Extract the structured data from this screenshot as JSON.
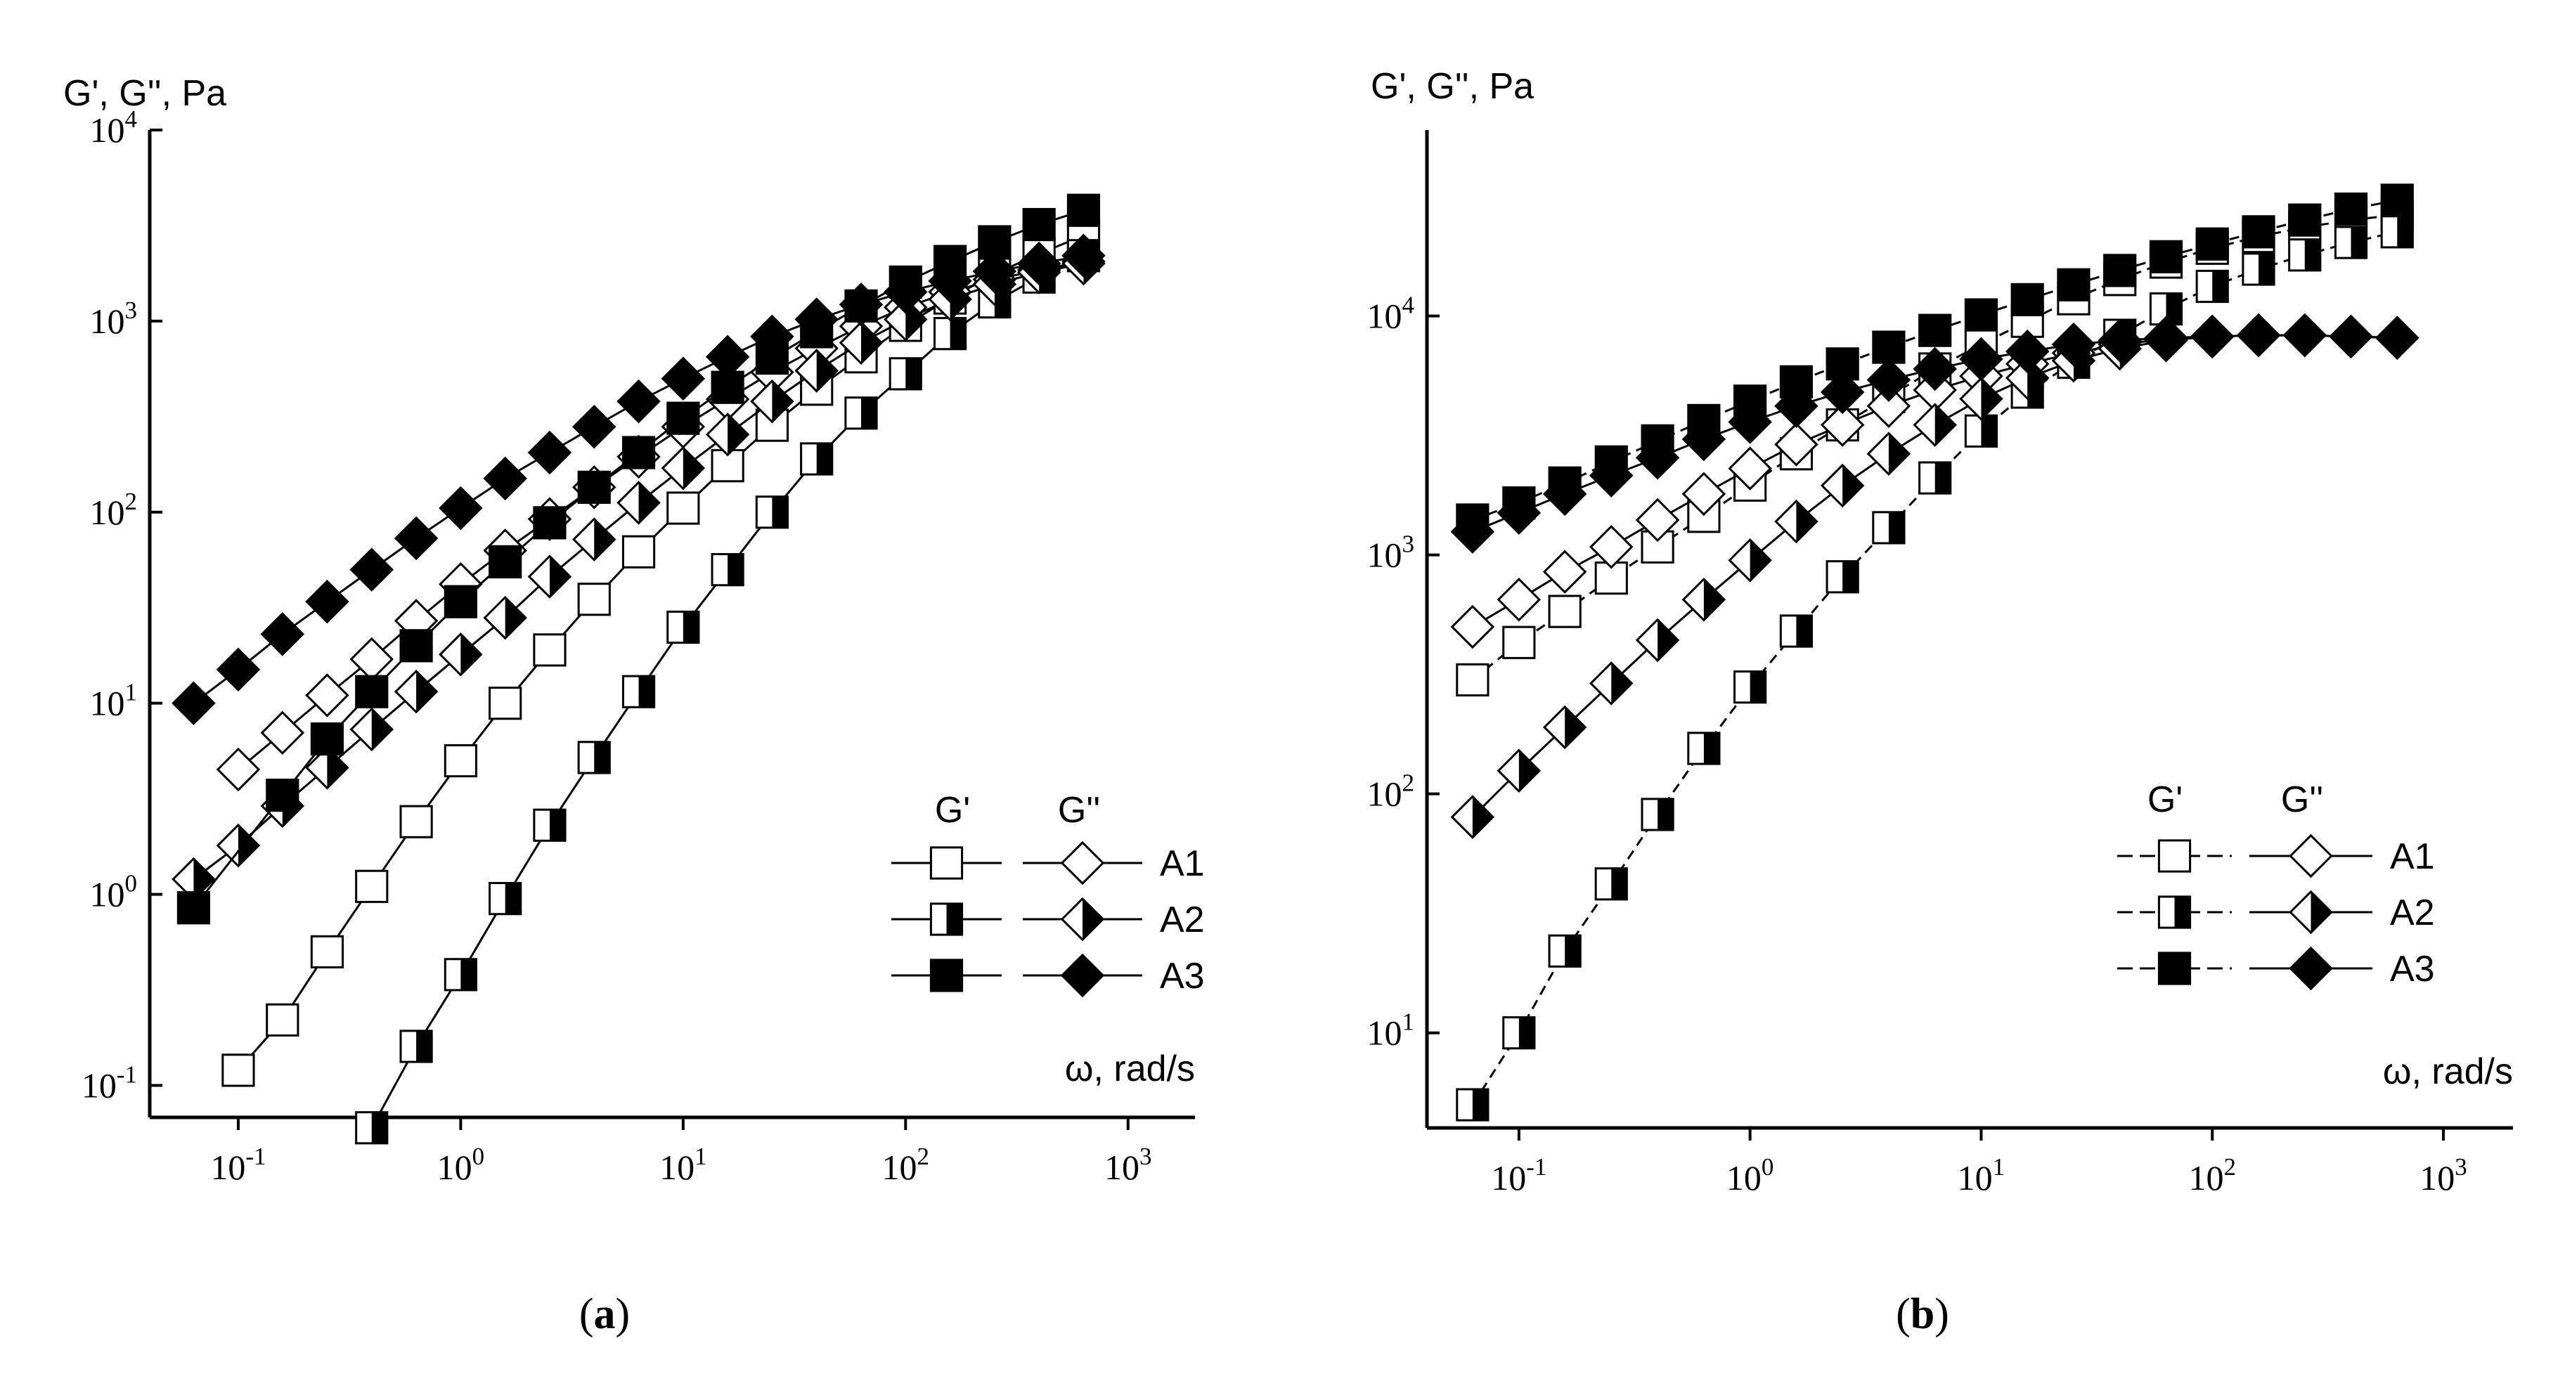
{
  "colors": {
    "ink": "#000000",
    "paper": "#ffffff"
  },
  "chart_data": [
    {
      "type": "scatter",
      "panel": "a",
      "caption_letter": "a",
      "xscale": "log",
      "yscale": "log",
      "xlim": [
        0.04,
        2000
      ],
      "ylim": [
        0.068,
        10000
      ],
      "ylabel": "G', G'', Pa",
      "xlabel": "ω, rad/s",
      "x_ticks": [
        {
          "base": "10",
          "exp": "-1",
          "value": 0.1
        },
        {
          "base": "10",
          "exp": "0",
          "value": 1
        },
        {
          "base": "10",
          "exp": "1",
          "value": 10
        },
        {
          "base": "10",
          "exp": "2",
          "value": 100
        },
        {
          "base": "10",
          "exp": "3",
          "value": 1000
        }
      ],
      "y_ticks": [
        {
          "base": "10",
          "exp": "-1",
          "value": 0.1
        },
        {
          "base": "10",
          "exp": "0",
          "value": 1
        },
        {
          "base": "10",
          "exp": "1",
          "value": 10
        },
        {
          "base": "10",
          "exp": "2",
          "value": 100
        },
        {
          "base": "10",
          "exp": "3",
          "value": 1000
        },
        {
          "base": "10",
          "exp": "4",
          "value": 10000
        }
      ],
      "legend": {
        "g1_header": "G'",
        "g2_header": "G''",
        "entries": [
          "A1",
          "A2",
          "A3"
        ],
        "placement": "bottom-right"
      },
      "series": [
        {
          "name": "A1 G'",
          "sample": "A1",
          "modulus": "G'",
          "marker": "square",
          "fill": "open",
          "x": [
            0.1,
            0.158,
            0.251,
            0.398,
            0.631,
            1,
            1.585,
            2.512,
            3.981,
            6.31,
            10,
            15.85,
            25.12,
            39.81,
            63.1,
            100,
            158.5,
            251.2,
            398.1,
            631
          ],
          "y": [
            0.12,
            0.22,
            0.5,
            1.1,
            2.4,
            5,
            10,
            19,
            35,
            62,
            105,
            175,
            285,
            440,
            650,
            950,
            1320,
            1760,
            2250,
            2800
          ]
        },
        {
          "name": "A1 G''",
          "sample": "A1",
          "modulus": "G''",
          "marker": "diamond",
          "fill": "open",
          "x": [
            0.1,
            0.158,
            0.251,
            0.398,
            0.631,
            1,
            1.585,
            2.512,
            3.981,
            6.31,
            10,
            15.85,
            25.12,
            39.81,
            63.1,
            100,
            158.5,
            251.2,
            398.1,
            631
          ],
          "y": [
            4.5,
            7,
            11,
            17,
            27,
            42,
            63,
            92,
            135,
            195,
            280,
            390,
            540,
            720,
            940,
            1180,
            1420,
            1650,
            1850,
            2050
          ]
        },
        {
          "name": "A2 G'",
          "sample": "A2",
          "modulus": "G'",
          "marker": "square",
          "fill": "half",
          "x": [
            0.398,
            0.631,
            1,
            1.585,
            2.512,
            3.981,
            6.31,
            10,
            15.85,
            25.12,
            39.81,
            63.1,
            100,
            158.5,
            251.2,
            398.1,
            631
          ],
          "y": [
            0.06,
            0.16,
            0.38,
            0.95,
            2.3,
            5.2,
            11.5,
            25,
            50,
            100,
            190,
            330,
            530,
            860,
            1260,
            1700,
            2200
          ]
        },
        {
          "name": "A2 G''",
          "sample": "A2",
          "modulus": "G''",
          "marker": "diamond",
          "fill": "half",
          "x": [
            0.063,
            0.1,
            0.158,
            0.251,
            0.398,
            0.631,
            1,
            1.585,
            2.512,
            3.981,
            6.31,
            10,
            15.85,
            25.12,
            39.81,
            63.1,
            100,
            158.5,
            251.2,
            398.1,
            631
          ],
          "y": [
            1.2,
            1.8,
            2.9,
            4.6,
            7.3,
            11.5,
            18,
            28,
            46,
            72,
            112,
            170,
            255,
            380,
            550,
            770,
            1020,
            1300,
            1560,
            1800,
            2000
          ]
        },
        {
          "name": "A3 G'",
          "sample": "A3",
          "modulus": "G'",
          "marker": "square",
          "fill": "filled",
          "x": [
            0.063,
            0.158,
            0.251,
            0.398,
            0.631,
            1,
            1.585,
            2.512,
            3.981,
            6.31,
            10,
            15.85,
            25.12,
            39.81,
            63.1,
            100,
            158.5,
            251.2,
            398.1,
            631
          ],
          "y": [
            0.85,
            3.3,
            6.5,
            11.5,
            20,
            34,
            55,
            88,
            135,
            205,
            310,
            450,
            640,
            880,
            1200,
            1600,
            2050,
            2600,
            3200,
            3800
          ]
        },
        {
          "name": "A3 G''",
          "sample": "A3",
          "modulus": "G''",
          "marker": "diamond",
          "fill": "filled",
          "x": [
            0.063,
            0.1,
            0.158,
            0.251,
            0.398,
            0.631,
            1,
            1.585,
            2.512,
            3.981,
            6.31,
            10,
            15.85,
            25.12,
            39.81,
            63.1,
            100,
            158.5,
            251.2,
            398.1,
            631
          ],
          "y": [
            10,
            15,
            23,
            34,
            50,
            73,
            105,
            150,
            205,
            280,
            380,
            500,
            650,
            830,
            1020,
            1220,
            1420,
            1620,
            1820,
            2000,
            2200
          ]
        }
      ]
    },
    {
      "type": "scatter",
      "panel": "b",
      "caption_letter": "b",
      "xscale": "log",
      "yscale": "log",
      "xlim": [
        0.04,
        2000
      ],
      "ylim": [
        4,
        60000
      ],
      "ylabel": "G', G'', Pa",
      "xlabel": "ω, rad/s",
      "x_ticks": [
        {
          "base": "10",
          "exp": "-1",
          "value": 0.1
        },
        {
          "base": "10",
          "exp": "0",
          "value": 1
        },
        {
          "base": "10",
          "exp": "1",
          "value": 10
        },
        {
          "base": "10",
          "exp": "2",
          "value": 100
        },
        {
          "base": "10",
          "exp": "3",
          "value": 1000
        }
      ],
      "y_ticks": [
        {
          "base": "10",
          "exp": "1",
          "value": 10
        },
        {
          "base": "10",
          "exp": "2",
          "value": 100
        },
        {
          "base": "10",
          "exp": "3",
          "value": 1000
        },
        {
          "base": "10",
          "exp": "4",
          "value": 10000
        }
      ],
      "legend": {
        "g1_header": "G'",
        "g2_header": "G''",
        "entries": [
          "A1",
          "A2",
          "A3"
        ],
        "placement": "bottom-right"
      },
      "series": [
        {
          "name": "A1 G'",
          "sample": "A1",
          "modulus": "G'",
          "marker": "square",
          "fill": "open",
          "x": [
            0.063,
            0.1,
            0.158,
            0.251,
            0.398,
            0.631,
            1,
            1.585,
            2.512,
            3.981,
            6.31,
            10,
            15.85,
            25.12,
            39.81,
            63.1,
            100,
            158.5,
            251.2,
            398.1,
            631
          ],
          "y": [
            300,
            430,
            580,
            800,
            1080,
            1450,
            1960,
            2650,
            3500,
            4600,
            6000,
            7600,
            9500,
            11800,
            14200,
            16800,
            19200,
            21500,
            23500,
            25200,
            26500
          ]
        },
        {
          "name": "A1 G''",
          "sample": "A1",
          "modulus": "G''",
          "marker": "diamond",
          "fill": "open",
          "x": [
            0.063,
            0.1,
            0.158,
            0.251,
            0.398,
            0.631,
            1,
            1.585,
            2.512,
            3.981,
            6.31,
            10,
            15.85,
            25.12,
            39.81,
            63.1,
            100,
            158.5,
            251.2,
            398.1,
            631
          ],
          "y": [
            500,
            650,
            850,
            1080,
            1400,
            1800,
            2300,
            2900,
            3500,
            4200,
            4900,
            5600,
            6300,
            7000,
            7600,
            8000,
            8200,
            8300,
            8300,
            8200,
            8100
          ]
        },
        {
          "name": "A2 G'",
          "sample": "A2",
          "modulus": "G'",
          "marker": "square",
          "fill": "half",
          "x": [
            0.063,
            0.1,
            0.158,
            0.251,
            0.398,
            0.631,
            1,
            1.585,
            2.512,
            3.981,
            6.31,
            10,
            15.85,
            25.12,
            39.81,
            63.1,
            100,
            158.5,
            251.2,
            398.1,
            631
          ],
          "y": [
            5,
            10,
            22,
            42,
            82,
            155,
            280,
            480,
            810,
            1300,
            2100,
            3300,
            4800,
            6400,
            8300,
            10700,
            13300,
            15700,
            18000,
            20300,
            22500
          ]
        },
        {
          "name": "A2 G''",
          "sample": "A2",
          "modulus": "G''",
          "marker": "diamond",
          "fill": "half",
          "x": [
            0.063,
            0.1,
            0.158,
            0.251,
            0.398,
            0.631,
            1,
            1.585,
            2.512,
            3.981,
            6.31,
            10,
            15.85,
            25.12,
            39.81,
            63.1,
            100,
            158.5,
            251.2,
            398.1,
            631
          ],
          "y": [
            80,
            125,
            190,
            290,
            440,
            650,
            950,
            1380,
            1950,
            2650,
            3500,
            4500,
            5500,
            6500,
            7300,
            7900,
            8200,
            8300,
            8300,
            8200,
            8100
          ]
        },
        {
          "name": "A3 G'",
          "sample": "A3",
          "modulus": "G'",
          "marker": "square",
          "fill": "filled",
          "x": [
            0.063,
            0.1,
            0.158,
            0.251,
            0.398,
            0.631,
            1,
            1.585,
            2.512,
            3.981,
            6.31,
            10,
            15.85,
            25.12,
            39.81,
            63.1,
            100,
            158.5,
            251.2,
            398.1,
            631
          ],
          "y": [
            1400,
            1650,
            2000,
            2450,
            3000,
            3650,
            4400,
            5300,
            6300,
            7400,
            8700,
            10100,
            11700,
            13500,
            15500,
            17700,
            20000,
            22500,
            25200,
            28000,
            30500
          ]
        },
        {
          "name": "A3 G''",
          "sample": "A3",
          "modulus": "G''",
          "marker": "diamond",
          "fill": "filled",
          "x": [
            0.063,
            0.1,
            0.158,
            0.251,
            0.398,
            0.631,
            1,
            1.585,
            2.512,
            3.981,
            6.31,
            10,
            15.85,
            25.12,
            39.81,
            63.1,
            100,
            158.5,
            251.2,
            398.1,
            631
          ],
          "y": [
            1250,
            1500,
            1800,
            2150,
            2550,
            3050,
            3600,
            4200,
            4800,
            5400,
            6000,
            6600,
            7100,
            7600,
            7900,
            8100,
            8200,
            8300,
            8300,
            8200,
            8100
          ]
        }
      ]
    }
  ]
}
